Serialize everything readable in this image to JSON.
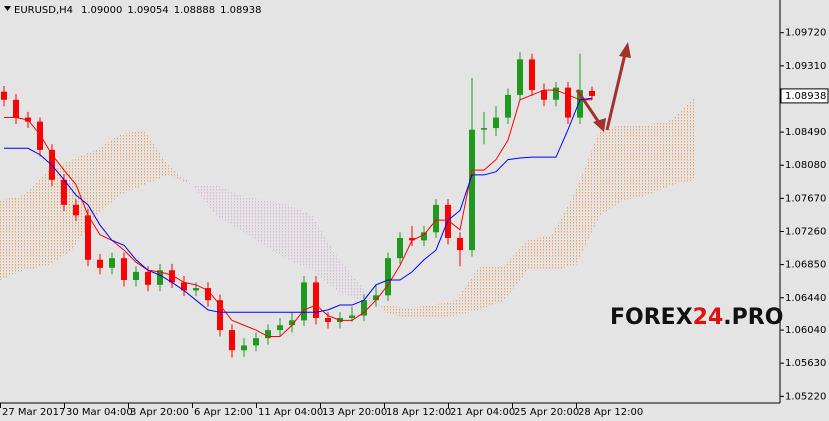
{
  "chart_data": {
    "type": "candlestick",
    "title": "EURUSD,H4",
    "ohlc_labels": [
      "1.09000",
      "1.09054",
      "1.08888",
      "1.08938"
    ],
    "x": [
      1,
      4,
      7,
      10,
      13,
      16,
      19,
      22,
      25,
      28,
      31,
      34,
      37,
      40,
      43,
      46,
      49,
      52,
      55,
      58,
      61,
      64,
      67,
      70,
      73,
      76,
      79,
      82,
      85,
      88,
      91,
      94,
      97,
      100,
      103,
      106,
      109,
      112,
      115,
      118,
      121,
      124,
      127,
      130,
      133,
      136,
      139,
      142,
      145,
      148
    ],
    "open": [
      1.0899,
      1.0889,
      1.0867,
      1.0862,
      1.0827,
      1.079,
      1.0759,
      1.0746,
      1.0691,
      1.0681,
      1.0693,
      1.0666,
      1.0676,
      1.066,
      1.0678,
      1.0663,
      1.0653,
      1.0656,
      1.0641,
      1.0604,
      1.0579,
      1.0585,
      1.0594,
      1.0604,
      1.061,
      1.0616,
      1.0663,
      1.0619,
      1.0614,
      1.0619,
      1.0622,
      1.0641,
      1.0647,
      1.0693,
      1.0718,
      1.0715,
      1.0725,
      1.0759,
      1.0718,
      1.0703,
      1.0852,
      1.0854,
      1.0867,
      1.0895,
      1.0939,
      1.0901,
      1.0889,
      1.0904,
      1.0867,
      1.09
    ],
    "high": [
      1.0906,
      1.0896,
      1.0874,
      1.0867,
      1.0834,
      1.0797,
      1.0766,
      1.0754,
      1.0698,
      1.07,
      1.07,
      1.0683,
      1.0683,
      1.0686,
      1.0686,
      1.0671,
      1.0663,
      1.0663,
      1.0648,
      1.0611,
      1.0594,
      1.0601,
      1.0611,
      1.0619,
      1.0626,
      1.0671,
      1.0671,
      1.0626,
      1.0626,
      1.0633,
      1.0648,
      1.066,
      1.07,
      1.0725,
      1.0733,
      1.0733,
      1.0766,
      1.0766,
      1.0725,
      1.0916,
      1.0874,
      1.0881,
      1.0903,
      1.0948,
      1.0946,
      1.0909,
      1.0911,
      1.0911,
      1.0946,
      1.09054
    ],
    "low": [
      1.0881,
      1.0859,
      1.0854,
      1.0819,
      1.0782,
      1.0751,
      1.0739,
      1.0683,
      1.0673,
      1.0673,
      1.0658,
      1.0658,
      1.0652,
      1.0652,
      1.0656,
      1.0646,
      1.0646,
      1.0633,
      1.0596,
      1.057,
      1.0571,
      1.0578,
      1.0586,
      1.0596,
      1.0601,
      1.0609,
      1.0611,
      1.0606,
      1.0606,
      1.0614,
      1.0615,
      1.0633,
      1.064,
      1.0686,
      1.0708,
      1.0708,
      1.0718,
      1.071,
      1.0683,
      1.0695,
      1.0834,
      1.0844,
      1.0859,
      1.0888,
      1.0894,
      1.0881,
      1.0881,
      1.0859,
      1.0859,
      1.08888
    ],
    "close": [
      1.0889,
      1.0867,
      1.0862,
      1.0827,
      1.079,
      1.0759,
      1.0746,
      1.0691,
      1.0681,
      1.0693,
      1.0666,
      1.0676,
      1.066,
      1.0678,
      1.0663,
      1.0653,
      1.0656,
      1.0641,
      1.0604,
      1.0579,
      1.0585,
      1.0594,
      1.0604,
      1.061,
      1.0616,
      1.0663,
      1.0619,
      1.0614,
      1.0619,
      1.0622,
      1.0641,
      1.0647,
      1.0693,
      1.0718,
      1.0715,
      1.0725,
      1.0759,
      1.0718,
      1.0703,
      1.0852,
      1.0854,
      1.0867,
      1.0895,
      1.0939,
      1.0901,
      1.0889,
      1.0904,
      1.0867,
      1.0901,
      1.08938
    ],
    "up_color": "#1f9a1f",
    "down_color": "#ff0000",
    "lines": [
      {
        "color": "#ff0000",
        "values": [
          1.0867,
          1.0867,
          1.0864,
          1.0846,
          1.0821,
          1.0802,
          1.0784,
          1.0746,
          1.0722,
          1.0715,
          1.0703,
          1.0688,
          1.0678,
          1.0676,
          1.0672,
          1.0663,
          1.066,
          1.0653,
          1.0635,
          1.0616,
          1.061,
          1.0604,
          1.0596,
          1.0596,
          1.061,
          1.0629,
          1.0635,
          1.0622,
          1.0616,
          1.0616,
          1.0626,
          1.0641,
          1.066,
          1.0684,
          1.0715,
          1.0722,
          1.074,
          1.074,
          1.0728,
          1.0802,
          1.0802,
          1.0815,
          1.0839,
          1.0889,
          1.0895,
          1.0901,
          1.0901,
          1.0895,
          1.0889,
          1.0889
        ]
      },
      {
        "color": "#0000ff",
        "values": [
          1.0829,
          1.0829,
          1.0829,
          1.0821,
          1.0808,
          1.079,
          1.0771,
          1.0759,
          1.0734,
          1.0715,
          1.0709,
          1.0691,
          1.0678,
          1.0672,
          1.0663,
          1.0653,
          1.0641,
          1.0629,
          1.0626,
          1.0626,
          1.0626,
          1.0626,
          1.0626,
          1.0626,
          1.0626,
          1.0626,
          1.0626,
          1.0629,
          1.0635,
          1.0635,
          1.0641,
          1.066,
          1.0666,
          1.0666,
          1.0676,
          1.0691,
          1.0703,
          1.074,
          1.0752,
          1.0796,
          1.0796,
          1.08,
          1.0815,
          1.0817,
          1.0818,
          1.0818,
          1.0818,
          1.0852,
          1.0889,
          1.0891
        ]
      }
    ],
    "cloud": {
      "x": [
        0,
        6,
        12,
        18,
        24,
        30,
        36,
        42,
        48,
        54,
        60,
        66,
        72,
        78,
        84,
        90,
        96,
        102,
        108,
        114,
        120,
        126,
        132,
        138,
        144,
        150,
        156,
        162,
        168,
        174
      ],
      "span_a": [
        1.0765,
        1.0771,
        1.0802,
        1.0815,
        1.0827,
        1.0846,
        1.0852,
        1.0808,
        1.0784,
        1.0746,
        1.0728,
        1.0709,
        1.0691,
        1.0678,
        1.0653,
        1.0641,
        1.0635,
        1.0631,
        1.0635,
        1.0641,
        1.0684,
        1.0684,
        1.0715,
        1.0722,
        1.0777,
        1.0852,
        1.0858,
        1.0858,
        1.0864,
        1.0894
      ],
      "span_b": [
        1.0666,
        1.0678,
        1.0684,
        1.0703,
        1.0746,
        1.0771,
        1.0784,
        1.0796,
        1.0784,
        1.0784,
        1.0771,
        1.0765,
        1.0759,
        1.0746,
        1.0697,
        1.066,
        1.0626,
        1.0619,
        1.0619,
        1.0622,
        1.0629,
        1.0641,
        1.0678,
        1.0678,
        1.0684,
        1.0746,
        1.0765,
        1.0771,
        1.0784,
        1.079
      ],
      "up_color": "#f5a05a",
      "down_color": "#d7b6d7"
    },
    "xlim": [
      0,
      195
    ],
    "xticks": [
      {
        "value": 0,
        "label": "27 Mar 2017"
      },
      {
        "value": 16,
        "label": "30 Mar 04:00"
      },
      {
        "value": 32,
        "label": "3 Apr 20:00"
      },
      {
        "value": 48,
        "label": "6 Apr 12:00"
      },
      {
        "value": 64,
        "label": "11 Apr 04:00"
      },
      {
        "value": 80,
        "label": "13 Apr 20:00"
      },
      {
        "value": 96,
        "label": "18 Apr 12:00"
      },
      {
        "value": 112,
        "label": "21 Apr 04:00"
      },
      {
        "value": 128,
        "label": "25 Apr 20:00"
      },
      {
        "value": 144,
        "label": "28 Apr 12:00"
      }
    ],
    "ylim": [
      1.0515,
      1.101
    ],
    "yticks": [
      {
        "value": 1.0972,
        "label": "1.09720"
      },
      {
        "value": 1.0931,
        "label": "1.09310"
      },
      {
        "value": 1.0849,
        "label": "1.08490"
      },
      {
        "value": 1.0808,
        "label": "1.08080"
      },
      {
        "value": 1.0767,
        "label": "1.07670"
      },
      {
        "value": 1.0726,
        "label": "1.07260"
      },
      {
        "value": 1.0685,
        "label": "1.06850"
      },
      {
        "value": 1.0644,
        "label": "1.06440"
      },
      {
        "value": 1.0604,
        "label": "1.06040"
      },
      {
        "value": 1.0563,
        "label": "1.05630"
      },
      {
        "value": 1.0522,
        "label": "1.05220"
      }
    ],
    "last_price": {
      "value": 1.08938,
      "label": "1.08938"
    },
    "grid": false,
    "watermark": {
      "parts": [
        "FOREX",
        "24",
        ".PRO"
      ],
      "colors": [
        "#111111",
        "#e01010",
        "#111111"
      ]
    }
  }
}
